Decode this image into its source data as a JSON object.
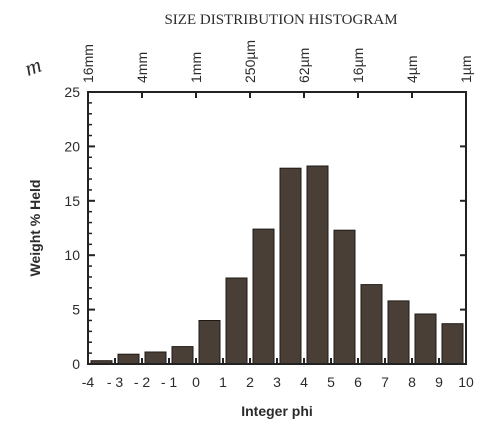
{
  "chart_data": {
    "type": "bar",
    "title": "SIZE DISTRIBUTION HISTOGRAM",
    "xlabel": "Integer phi",
    "ylabel": "Weight % Held",
    "ylim": [
      0,
      25
    ],
    "xlim": [
      -4,
      10
    ],
    "yticks": [
      "0",
      "5",
      "10",
      "15",
      "20",
      "25"
    ],
    "xticks": [
      "-4",
      "- 3",
      "- 2",
      "- 1",
      "0",
      "1",
      "2",
      "3",
      "4",
      "5",
      "6",
      "7",
      "8",
      "9",
      "10"
    ],
    "top_ticks": [
      "16mm",
      "4mm",
      "1mm",
      "250µm",
      "62µm",
      "16µm",
      "4µm",
      "1µm"
    ],
    "categories": [
      "-4",
      "-3",
      "-2",
      "-1",
      "0",
      "1",
      "2",
      "3",
      "4",
      "5",
      "6",
      "7",
      "8",
      "9"
    ],
    "values": [
      0.3,
      0.9,
      1.1,
      1.6,
      4.0,
      7.9,
      12.4,
      18.0,
      18.2,
      12.3,
      7.3,
      5.8,
      4.6,
      3.7
    ],
    "bar_color": "#4a3f37",
    "grid": false,
    "corner_mark": "m"
  }
}
